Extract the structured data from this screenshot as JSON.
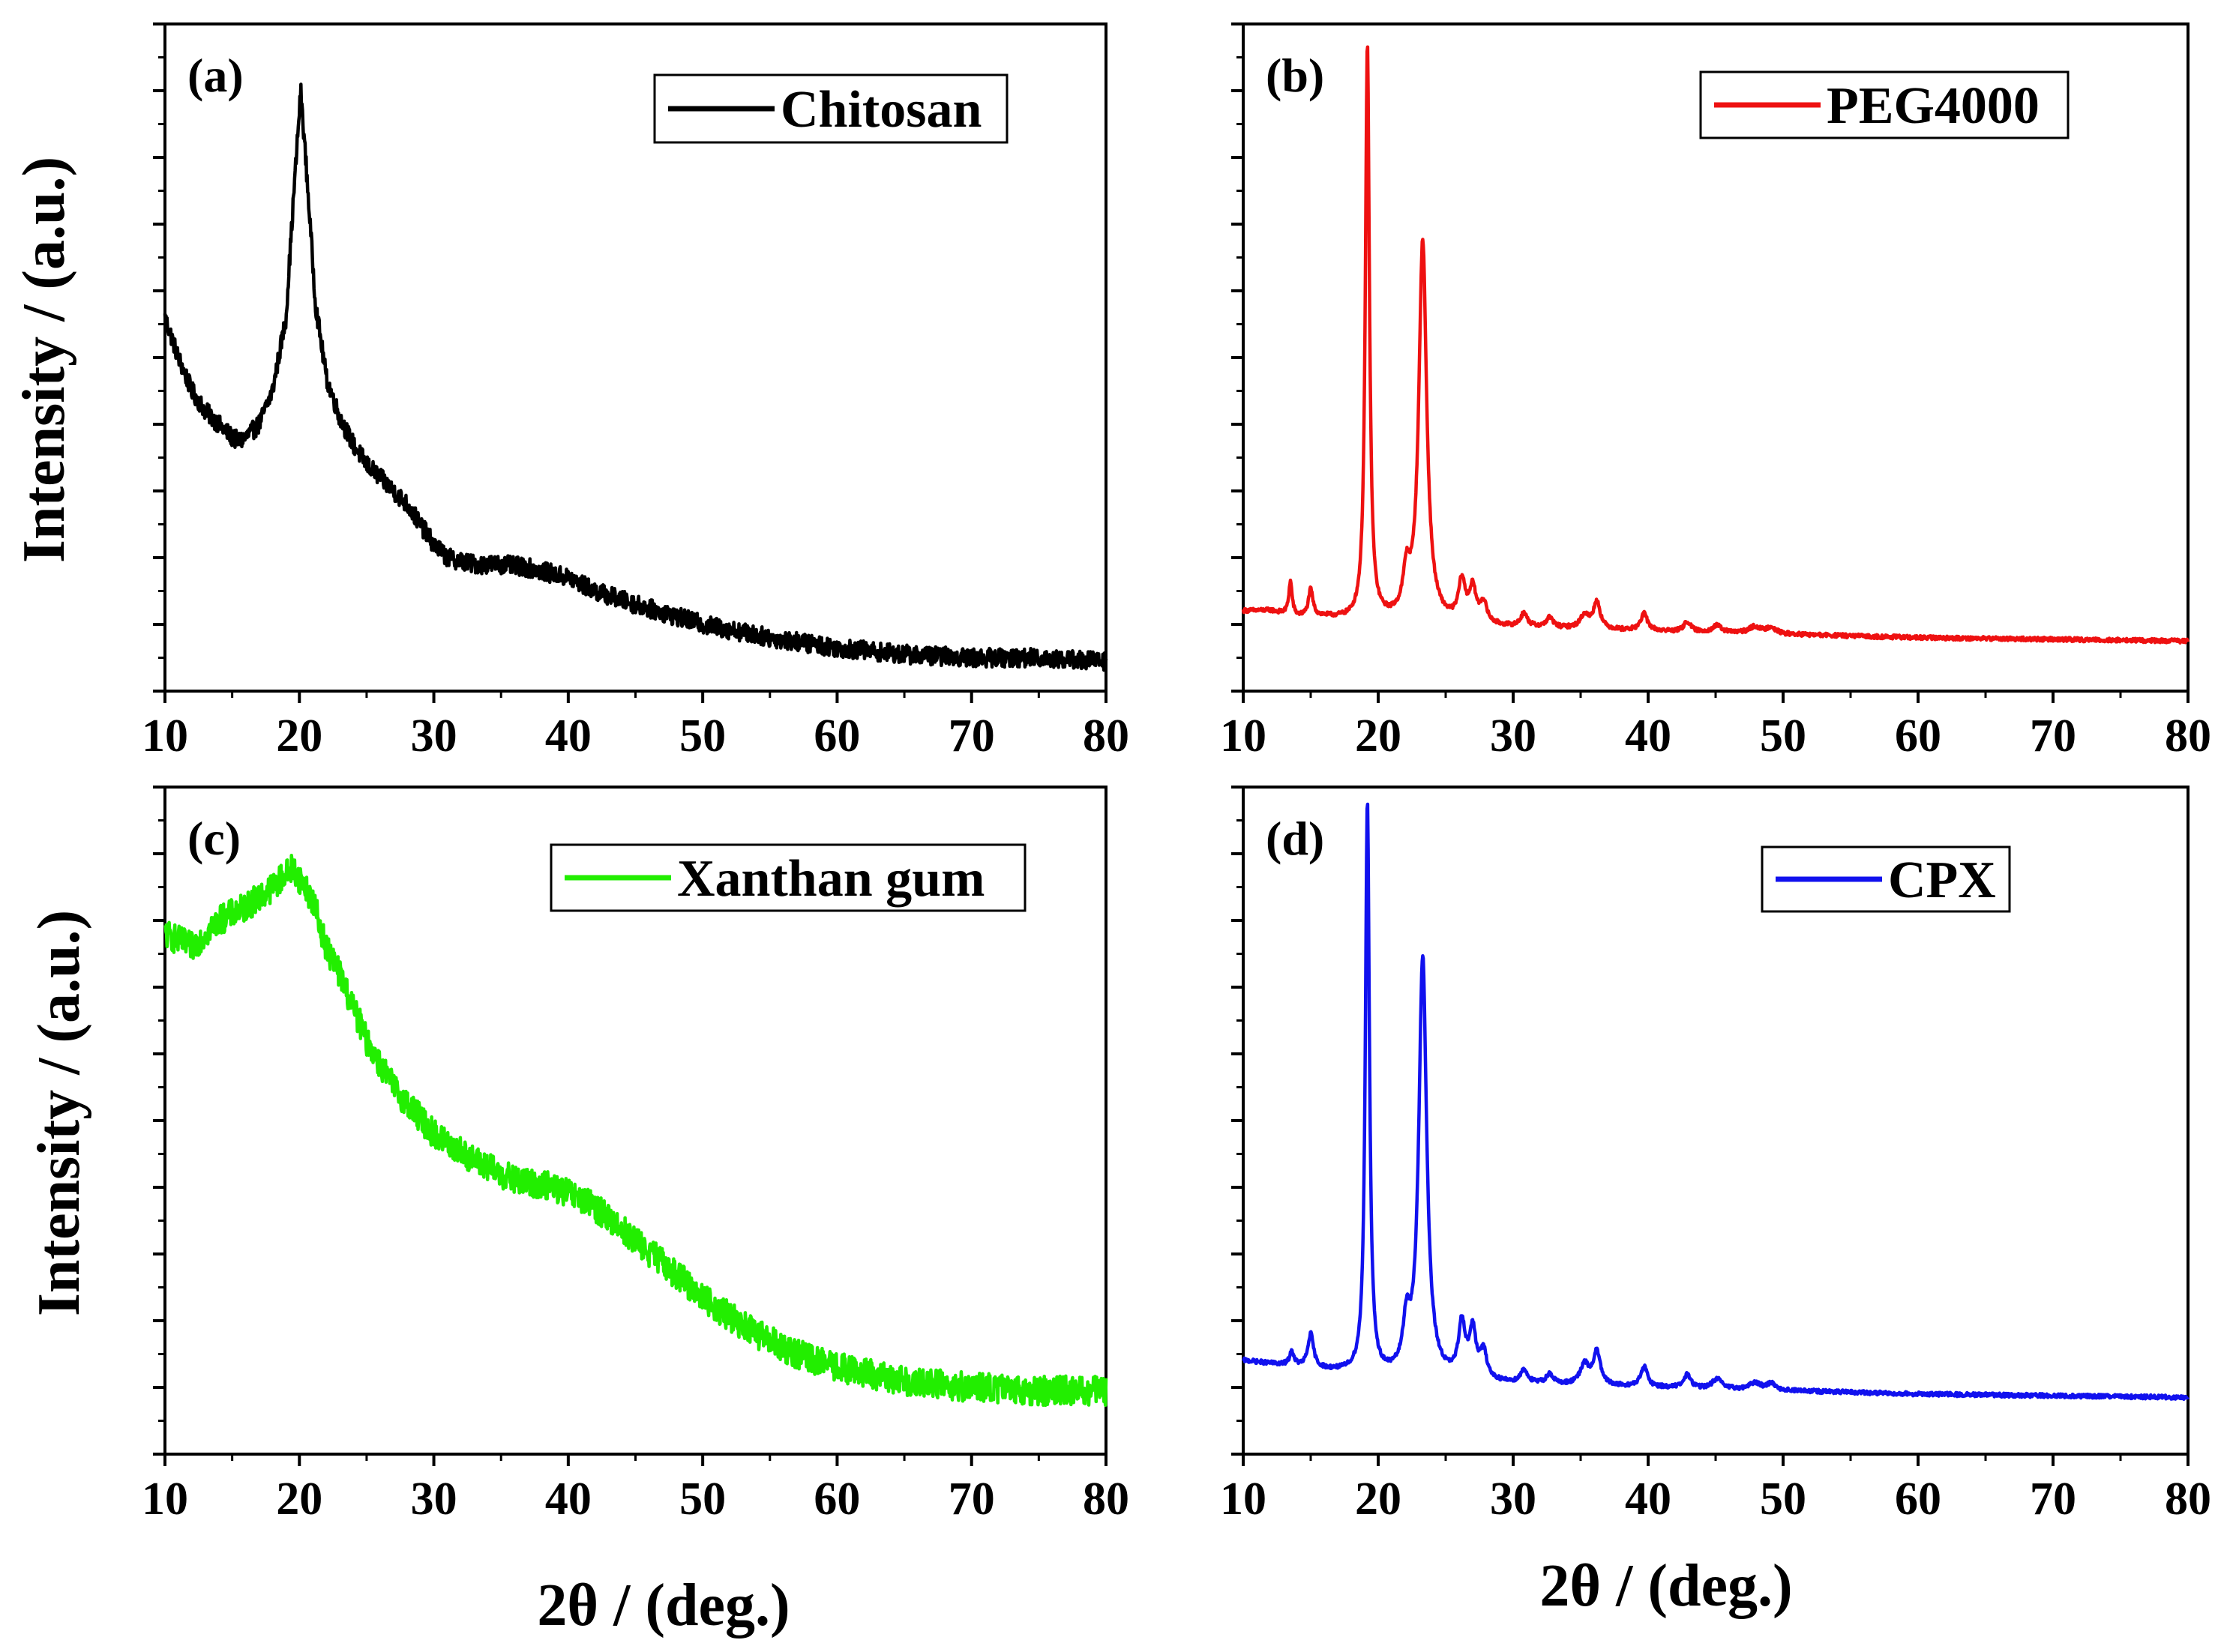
{
  "figure": {
    "y_axis_label": "Intensity / (a.u.)",
    "x_axis_label": "2θ / (deg.)"
  },
  "chart_data": [
    {
      "type": "line",
      "panel_label": "(a)",
      "series": [
        {
          "name": "Chitosan",
          "color": "#000000"
        }
      ],
      "x_ticks": [
        "10",
        "20",
        "30",
        "40",
        "50",
        "60",
        "70",
        "80"
      ],
      "xlim": [
        10,
        80
      ],
      "ylim": [
        0,
        100
      ],
      "legend": "top-right",
      "noise": 1.4,
      "points": [
        [
          10,
          56
        ],
        [
          11,
          50
        ],
        [
          12,
          45
        ],
        [
          13,
          42
        ],
        [
          14,
          40
        ],
        [
          15,
          38
        ],
        [
          15.5,
          37.5
        ],
        [
          16,
          38
        ],
        [
          17,
          40
        ],
        [
          18,
          45
        ],
        [
          19,
          56
        ],
        [
          19.6,
          75
        ],
        [
          20.1,
          90
        ],
        [
          20.6,
          76
        ],
        [
          21.2,
          58
        ],
        [
          22,
          47
        ],
        [
          23,
          41
        ],
        [
          24,
          37
        ],
        [
          25,
          34
        ],
        [
          26,
          32
        ],
        [
          27,
          30
        ],
        [
          28,
          28
        ],
        [
          29,
          25
        ],
        [
          30,
          22
        ],
        [
          31,
          20
        ],
        [
          33,
          19
        ],
        [
          35,
          19
        ],
        [
          37,
          18.5
        ],
        [
          40,
          17
        ],
        [
          42,
          15
        ],
        [
          45,
          13
        ],
        [
          50,
          10
        ],
        [
          55,
          8
        ],
        [
          60,
          6.5
        ],
        [
          65,
          5.5
        ],
        [
          70,
          5
        ],
        [
          75,
          5
        ],
        [
          80,
          4.5
        ]
      ]
    },
    {
      "type": "line",
      "panel_label": "(b)",
      "series": [
        {
          "name": "PEG4000",
          "color": "#ee1111"
        }
      ],
      "x_ticks": [
        "10",
        "20",
        "30",
        "40",
        "50",
        "60",
        "70",
        "80"
      ],
      "xlim": [
        10,
        80
      ],
      "ylim": [
        0,
        100
      ],
      "legend": "top-right",
      "noise": 0.3,
      "baseline": [
        [
          10,
          12
        ],
        [
          12,
          12
        ],
        [
          14,
          11
        ],
        [
          16,
          11
        ],
        [
          18,
          10.5
        ],
        [
          20,
          10.5
        ],
        [
          25,
          10
        ],
        [
          30,
          9.5
        ],
        [
          40,
          9
        ],
        [
          50,
          8.5
        ],
        [
          60,
          8
        ],
        [
          80,
          7.5
        ]
      ],
      "peaks": [
        [
          13.5,
          5,
          0.15
        ],
        [
          15,
          4,
          0.2
        ],
        [
          19.2,
          86,
          0.18
        ],
        [
          23.3,
          57,
          0.35
        ],
        [
          22.1,
          6,
          0.3
        ],
        [
          26.2,
          6,
          0.3
        ],
        [
          27,
          5,
          0.3
        ],
        [
          27.8,
          3,
          0.3
        ],
        [
          30.8,
          2,
          0.3
        ],
        [
          32.7,
          1.5,
          0.3
        ],
        [
          35.3,
          2,
          0.4
        ],
        [
          36.2,
          4,
          0.3
        ],
        [
          39.7,
          2.5,
          0.3
        ],
        [
          42.9,
          1.5,
          0.3
        ],
        [
          45.1,
          1,
          0.4
        ],
        [
          47.9,
          1,
          0.5
        ],
        [
          49.1,
          1,
          0.4
        ]
      ]
    },
    {
      "type": "line",
      "panel_label": "(c)",
      "series": [
        {
          "name": "Xanthan gum",
          "color": "#22ee00"
        }
      ],
      "x_ticks": [
        "10",
        "20",
        "30",
        "40",
        "50",
        "60",
        "70",
        "80"
      ],
      "xlim": [
        10,
        80
      ],
      "ylim": [
        0,
        100
      ],
      "legend": "top-right",
      "noise": 2.2,
      "points": [
        [
          10,
          78
        ],
        [
          12,
          76
        ],
        [
          14,
          80
        ],
        [
          16,
          82
        ],
        [
          18,
          85
        ],
        [
          19.5,
          88
        ],
        [
          21,
          83
        ],
        [
          22,
          76
        ],
        [
          23,
          72
        ],
        [
          25,
          62
        ],
        [
          27,
          55
        ],
        [
          30,
          48
        ],
        [
          33,
          44
        ],
        [
          36,
          41
        ],
        [
          39,
          40
        ],
        [
          42,
          37
        ],
        [
          45,
          32
        ],
        [
          48,
          27
        ],
        [
          51,
          22
        ],
        [
          54,
          18
        ],
        [
          57,
          15
        ],
        [
          60,
          13
        ],
        [
          65,
          11
        ],
        [
          70,
          10
        ],
        [
          75,
          9.5
        ],
        [
          80,
          9.5
        ]
      ]
    },
    {
      "type": "line",
      "panel_label": "(d)",
      "series": [
        {
          "name": "CPX",
          "color": "#1111ee"
        }
      ],
      "x_ticks": [
        "10",
        "20",
        "30",
        "40",
        "50",
        "60",
        "70",
        "80"
      ],
      "xlim": [
        10,
        80
      ],
      "ylim": [
        0,
        100
      ],
      "legend": "top-right",
      "noise": 0.3,
      "baseline": [
        [
          10,
          14
        ],
        [
          12,
          13.5
        ],
        [
          14,
          13
        ],
        [
          16,
          12.5
        ],
        [
          18,
          12
        ],
        [
          20,
          11.5
        ],
        [
          25,
          11
        ],
        [
          30,
          10.5
        ],
        [
          40,
          10
        ],
        [
          50,
          9.5
        ],
        [
          60,
          9
        ],
        [
          80,
          8.5
        ]
      ],
      "peaks": [
        [
          13.6,
          2,
          0.2
        ],
        [
          15,
          5,
          0.25
        ],
        [
          19.2,
          86,
          0.18
        ],
        [
          23.3,
          63,
          0.35
        ],
        [
          22.1,
          7,
          0.3
        ],
        [
          26.2,
          8,
          0.3
        ],
        [
          27,
          7,
          0.3
        ],
        [
          27.8,
          4,
          0.3
        ],
        [
          30.8,
          2,
          0.3
        ],
        [
          32.7,
          1.5,
          0.3
        ],
        [
          35.3,
          3,
          0.4
        ],
        [
          36.2,
          5,
          0.3
        ],
        [
          39.7,
          3,
          0.3
        ],
        [
          42.9,
          2,
          0.3
        ],
        [
          45.1,
          1.5,
          0.4
        ],
        [
          47.9,
          1,
          0.5
        ],
        [
          49.1,
          1,
          0.4
        ]
      ]
    }
  ]
}
